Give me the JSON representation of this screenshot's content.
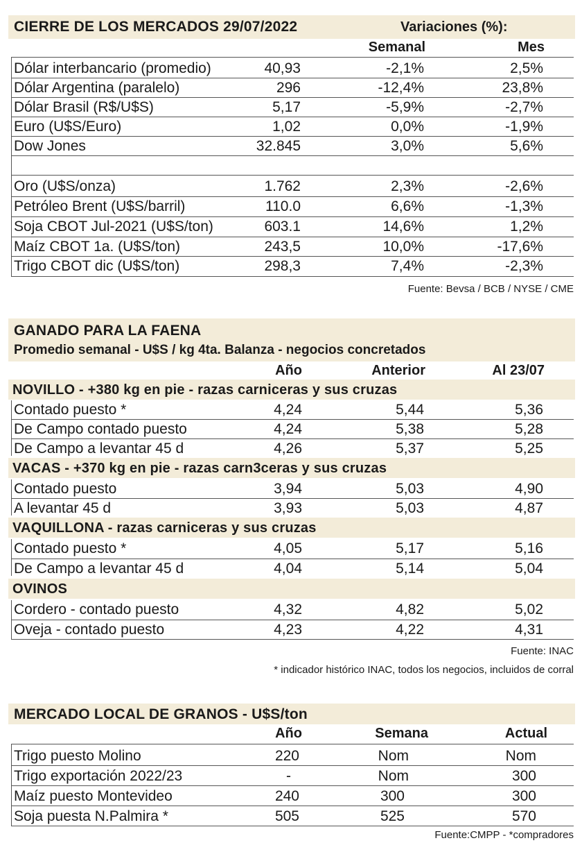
{
  "markets": {
    "title": "CIERRE DE LOS MERCADOS  29/07/2022",
    "variations_label": "Variaciones (%):",
    "col_weekly": "Semanal",
    "col_month": "Mes",
    "rows": [
      {
        "name": "Dólar interbancario (promedio)",
        "value": "40,93",
        "weekly": "-2,1%",
        "month": "2,5%"
      },
      {
        "name": "Dólar Argentina (paralelo)",
        "value": "296",
        "weekly": "-12,4%",
        "month": "23,8%"
      },
      {
        "name": "Dólar Brasil (R$/U$S)",
        "value": "5,17",
        "weekly": "-5,9%",
        "month": "-2,7%"
      },
      {
        "name": "Euro (U$S/Euro)",
        "value": "1,02",
        "weekly": "0,0%",
        "month": "-1,9%"
      },
      {
        "name": "Dow Jones",
        "value": "32.845",
        "weekly": "3,0%",
        "month": "5,6%"
      },
      {
        "name": "Oro (U$S/onza)",
        "value": "1.762",
        "weekly": "2,3%",
        "month": "-2,6%"
      },
      {
        "name": "Petróleo Brent (U$S/barril)",
        "value": "110.0",
        "weekly": "6,6%",
        "month": "-1,3%"
      },
      {
        "name": "Soja CBOT Jul-2021 (U$S/ton)",
        "value": "603.1",
        "weekly": "14,6%",
        "month": "1,2%"
      },
      {
        "name": "Maíz CBOT 1a. (U$S/ton)",
        "value": "243,5",
        "weekly": "10,0%",
        "month": "-17,6%"
      },
      {
        "name": "Trigo CBOT dic (U$S/ton)",
        "value": "298,3",
        "weekly": "7,4%",
        "month": "-2,3%"
      }
    ],
    "source": "Fuente: Bevsa / BCB / NYSE / CME"
  },
  "cattle": {
    "title": "GANADO PARA LA FAENA",
    "subtitle": "Promedio semanal - U$S / kg 4ta. Balanza - negocios concretados",
    "col_year": "Año",
    "col_previous": "Anterior",
    "col_current": "Al 23/07",
    "sections": [
      {
        "title": "NOVILLO - +380 kg en pie - razas carniceras y sus cruzas",
        "rows": [
          {
            "name": "Contado puesto *",
            "year": "4,24",
            "previous": "5,44",
            "current": "5,36"
          },
          {
            "name": "De Campo contado puesto",
            "year": "4,24",
            "previous": "5,38",
            "current": "5,28"
          },
          {
            "name": "De Campo a levantar 45 d",
            "year": "4,26",
            "previous": "5,37",
            "current": "5,25"
          }
        ]
      },
      {
        "title": "VACAS - +370 kg en pie - razas carn3ceras y sus cruzas",
        "rows": [
          {
            "name": "Contado puesto",
            "year": "3,94",
            "previous": "5,03",
            "current": "4,90"
          },
          {
            "name": "A levantar 45 d",
            "year": "3,93",
            "previous": "5,03",
            "current": "4,87"
          }
        ]
      },
      {
        "title": "VAQUILLONA - razas carniceras y sus cruzas",
        "rows": [
          {
            "name": "Contado puesto *",
            "year": "4,05",
            "previous": "5,17",
            "current": "5,16"
          },
          {
            "name": "De Campo a levantar 45 d",
            "year": "4,04",
            "previous": "5,14",
            "current": "5,04"
          }
        ]
      },
      {
        "title": "OVINOS",
        "rows": [
          {
            "name": "Cordero - contado puesto",
            "year": "4,32",
            "previous": "4,82",
            "current": "5,02"
          },
          {
            "name": "Oveja - contado puesto",
            "year": "4,23",
            "previous": "4,22",
            "current": "4,31"
          }
        ]
      }
    ],
    "source": "Fuente: INAC",
    "footnote": "* indicador histórico INAC, todos los negocios, incluidos de corral"
  },
  "grains": {
    "title": "MERCADO LOCAL DE GRANOS - U$S/ton",
    "col_year": "Año",
    "col_week": "Semana",
    "col_current": "Actual",
    "rows": [
      {
        "name": "Trigo puesto Molino",
        "year": "220",
        "week": "Nom",
        "current": "Nom"
      },
      {
        "name": "Trigo exportación 2022/23",
        "year": "-",
        "week": "Nom",
        "current": "300"
      },
      {
        "name": "Maíz puesto Montevideo",
        "year": "240",
        "week": "300",
        "current": "300"
      },
      {
        "name": "Soja puesta N.Palmira *",
        "year": "505",
        "week": "525",
        "current": "570"
      }
    ],
    "source": "Fuente:CMPP - *compradores"
  }
}
